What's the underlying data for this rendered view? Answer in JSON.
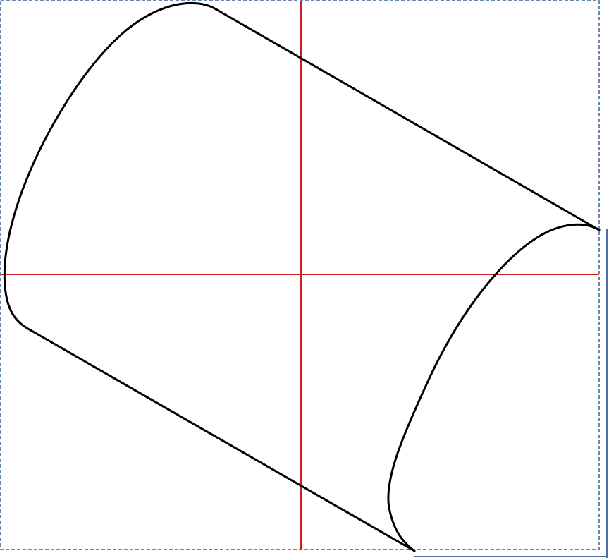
{
  "diagram": {
    "kind": "cylinder-drawing",
    "colors": {
      "background": "#ffffff",
      "outline": "#000000",
      "axis": "#cc1f1f",
      "frame": "#3a5f8a",
      "shadow": "#4a6fa5"
    },
    "frame": {
      "style": "dashed",
      "shadow": "drop-shadow"
    },
    "axes": {
      "horizontal": true,
      "vertical": true
    },
    "shape": {
      "ends": [
        "back-ellipse",
        "front-ellipse"
      ],
      "connectors": [
        "top-edge",
        "bottom-edge"
      ]
    }
  }
}
